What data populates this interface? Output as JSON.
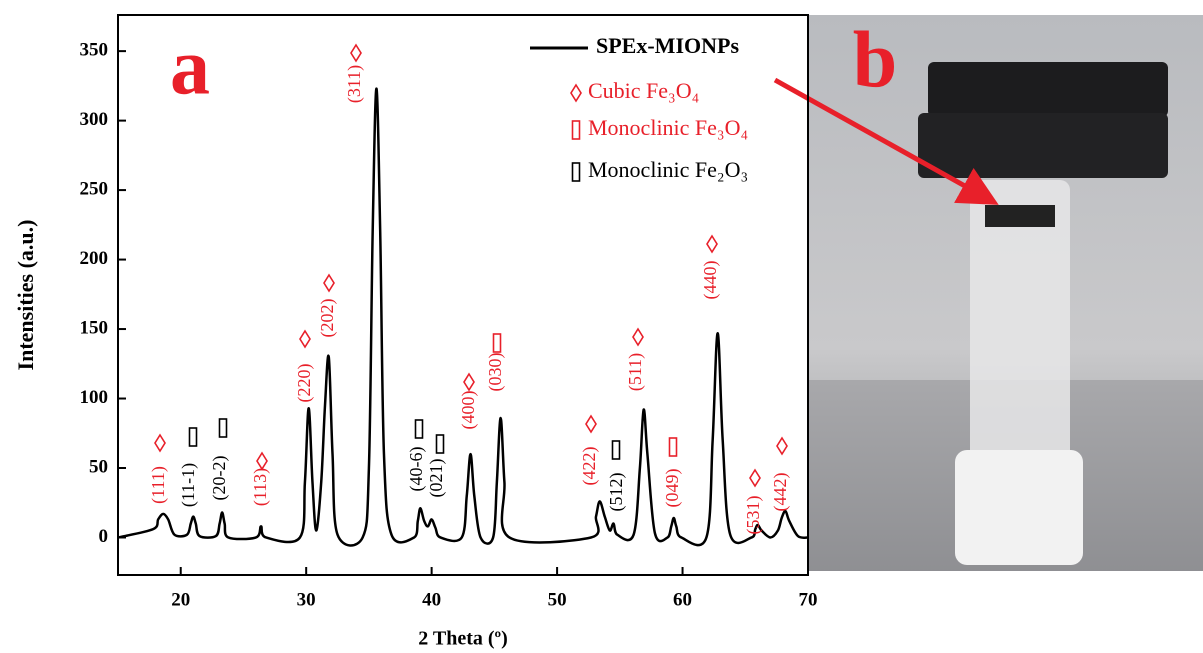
{
  "chart_data": {
    "type": "line",
    "panel_label": "a",
    "xlabel": "2 Theta (º)",
    "ylabel": "Intensities (a.u.)",
    "xlim": [
      15,
      70
    ],
    "xticks": [
      20,
      30,
      40,
      50,
      60,
      70
    ],
    "ylim": [
      -27,
      376
    ],
    "yticks": [
      0,
      50,
      100,
      150,
      200,
      250,
      300,
      350
    ],
    "x": [
      15,
      17.8,
      18.2,
      18.6,
      19.0,
      19.5,
      20.5,
      20.8,
      21.0,
      21.2,
      21.5,
      22.8,
      23.1,
      23.3,
      23.5,
      23.8,
      26.0,
      26.4,
      26.8,
      29.5,
      29.9,
      30.2,
      30.5,
      30.8,
      31.2,
      31.5,
      31.8,
      32.1,
      32.5,
      34.5,
      35.0,
      35.3,
      35.6,
      35.9,
      36.2,
      36.8,
      38.6,
      38.9,
      39.1,
      39.4,
      39.7,
      40.0,
      40.3,
      40.7,
      42.4,
      42.8,
      43.1,
      43.4,
      43.9,
      44.9,
      45.2,
      45.5,
      45.8,
      46.2,
      52.7,
      53.1,
      53.4,
      53.8,
      54.2,
      54.5,
      54.8,
      56.1,
      56.6,
      56.9,
      57.2,
      57.8,
      58.8,
      59.1,
      59.3,
      59.5,
      59.9,
      61.9,
      62.4,
      62.8,
      63.2,
      63.8,
      65.5,
      65.8,
      66.0,
      66.3,
      67.0,
      67.6,
      67.9,
      68.2,
      68.5,
      69.2,
      70
    ],
    "series": [
      {
        "name": "SPEx-MIONPs",
        "color": "#000000",
        "values": [
          0,
          6,
          13,
          17,
          13,
          2,
          2,
          10,
          15,
          10,
          1,
          1,
          10,
          18,
          10,
          0,
          0,
          8,
          0,
          0,
          40,
          93,
          40,
          5,
          40,
          95,
          130,
          60,
          2,
          0,
          50,
          220,
          323,
          220,
          60,
          2,
          0,
          12,
          21,
          12,
          8,
          13,
          7,
          0,
          0,
          30,
          60,
          30,
          0,
          0,
          40,
          86,
          40,
          0,
          0,
          15,
          26,
          15,
          5,
          10,
          2,
          2,
          50,
          92,
          60,
          3,
          0,
          8,
          14,
          8,
          0,
          0,
          70,
          147,
          70,
          2,
          0,
          6,
          9,
          5,
          0,
          5,
          14,
          19,
          12,
          1,
          0
        ]
      }
    ],
    "phases": [
      {
        "label": "Cubic Fe₃O₄",
        "shape": "diamond",
        "color": "#e8202a"
      },
      {
        "label": "Monoclinic Fe₃O₄",
        "shape": "rect",
        "color": "#e8202a"
      },
      {
        "label": "Monoclinic Fe₂O₃",
        "shape": "rect",
        "color": "#000000"
      }
    ],
    "annotations": [
      {
        "text": "(111)",
        "phase": 0
      },
      {
        "text": "(11-1)",
        "phase": 2
      },
      {
        "text": "(20-2)",
        "phase": 2
      },
      {
        "text": "(113)",
        "phase": 0
      },
      {
        "text": "(220)",
        "phase": 0
      },
      {
        "text": "(202)",
        "phase": 0
      },
      {
        "text": "(311)",
        "phase": 0
      },
      {
        "text": "(40-6)",
        "phase": 2
      },
      {
        "text": "(021)",
        "phase": 2
      },
      {
        "text": "(400)",
        "phase": 0
      },
      {
        "text": "(030)",
        "phase": 1
      },
      {
        "text": "(422)",
        "phase": 0
      },
      {
        "text": "(512)",
        "phase": 2
      },
      {
        "text": "(511)",
        "phase": 0
      },
      {
        "text": "(049)",
        "phase": 1
      },
      {
        "text": "(440)",
        "phase": 0
      },
      {
        "text": "(531)",
        "phase": 0
      },
      {
        "text": "(442)",
        "phase": 0
      }
    ]
  },
  "photo": {
    "panel_label": "b"
  }
}
